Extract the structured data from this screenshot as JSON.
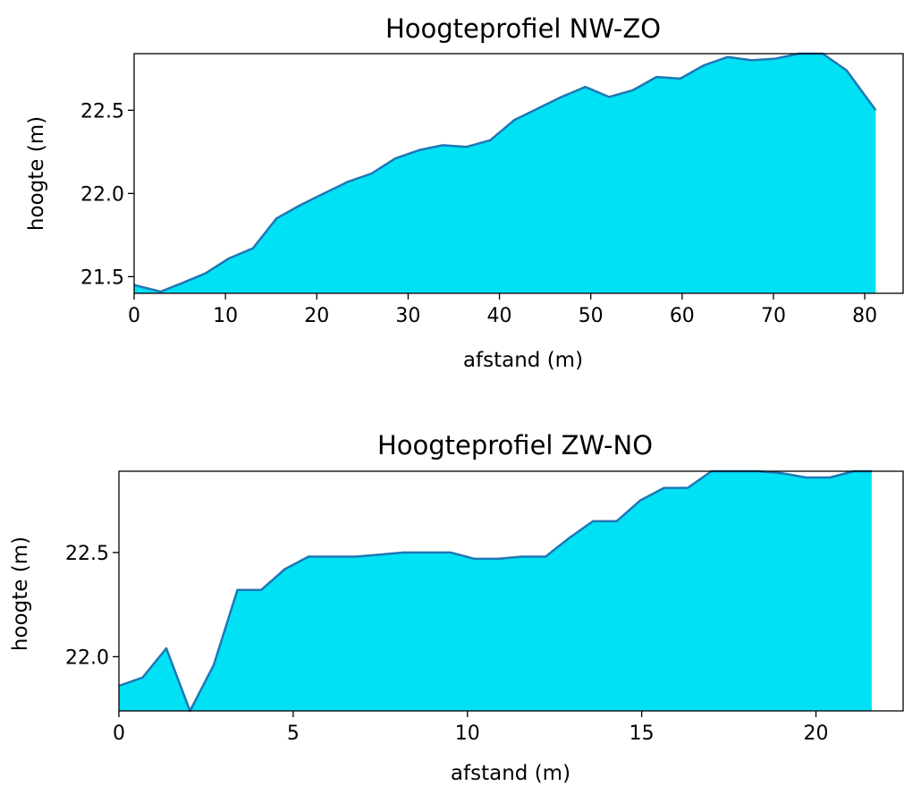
{
  "chart_data": [
    {
      "type": "area",
      "title": "Hoogteprofiel NW-ZO",
      "xlabel": "afstand (m)",
      "ylabel": "hoogte (m)",
      "xlim": [
        0,
        84.2
      ],
      "ylim": [
        21.4,
        22.84
      ],
      "xticks": [
        0,
        10,
        20,
        30,
        40,
        50,
        60,
        70,
        80
      ],
      "xtick_labels": [
        "0",
        "10",
        "20",
        "30",
        "40",
        "50",
        "60",
        "70",
        "80"
      ],
      "yticks": [
        21.5,
        22.0,
        22.5
      ],
      "ytick_labels": [
        "21.5",
        "22.0",
        "22.5"
      ],
      "grid": false,
      "fill_color": "#00e1f5",
      "line_color": "#1f77b4",
      "x": [
        0,
        2.9,
        5.2,
        7.8,
        10.4,
        13.0,
        15.6,
        18.2,
        20.8,
        23.4,
        26.0,
        28.6,
        31.2,
        33.8,
        36.4,
        39.0,
        41.6,
        44.2,
        46.8,
        49.4,
        52.0,
        54.6,
        57.2,
        59.8,
        62.4,
        65.0,
        67.6,
        70.2,
        72.8,
        75.4,
        78.0,
        81.2
      ],
      "y": [
        21.45,
        21.41,
        21.46,
        21.52,
        21.61,
        21.67,
        21.85,
        21.93,
        22.0,
        22.07,
        22.12,
        22.21,
        22.26,
        22.29,
        22.28,
        22.32,
        22.44,
        22.51,
        22.58,
        22.64,
        22.58,
        22.62,
        22.7,
        22.69,
        22.77,
        22.82,
        22.8,
        22.81,
        22.85,
        22.86,
        22.74,
        22.5
      ]
    },
    {
      "type": "area",
      "title": "Hoogteprofiel ZW-NO",
      "xlabel": "afstand (m)",
      "ylabel": "hoogte (m)",
      "xlim": [
        0,
        22.5
      ],
      "ylim": [
        21.74,
        22.89
      ],
      "xticks": [
        0,
        5,
        10,
        15,
        20
      ],
      "xtick_labels": [
        "0",
        "5",
        "10",
        "15",
        "20"
      ],
      "yticks": [
        22.0,
        22.5
      ],
      "ytick_labels": [
        "22.0",
        "22.5"
      ],
      "grid": false,
      "fill_color": "#00e1f5",
      "line_color": "#1f77b4",
      "x": [
        0,
        0.68,
        1.36,
        2.04,
        2.72,
        3.4,
        4.08,
        4.76,
        5.44,
        6.12,
        6.8,
        7.48,
        8.16,
        8.84,
        9.52,
        10.2,
        10.88,
        11.56,
        12.24,
        12.92,
        13.6,
        14.28,
        14.96,
        15.64,
        16.32,
        17.0,
        17.68,
        18.36,
        19.04,
        19.72,
        20.4,
        21.08,
        21.6
      ],
      "y": [
        21.86,
        21.9,
        22.04,
        21.74,
        21.96,
        22.32,
        22.32,
        22.42,
        22.48,
        22.48,
        22.48,
        22.49,
        22.5,
        22.5,
        22.5,
        22.47,
        22.47,
        22.48,
        22.48,
        22.57,
        22.65,
        22.65,
        22.75,
        22.81,
        22.81,
        22.89,
        22.89,
        22.89,
        22.88,
        22.86,
        22.86,
        22.89,
        22.89
      ]
    }
  ]
}
